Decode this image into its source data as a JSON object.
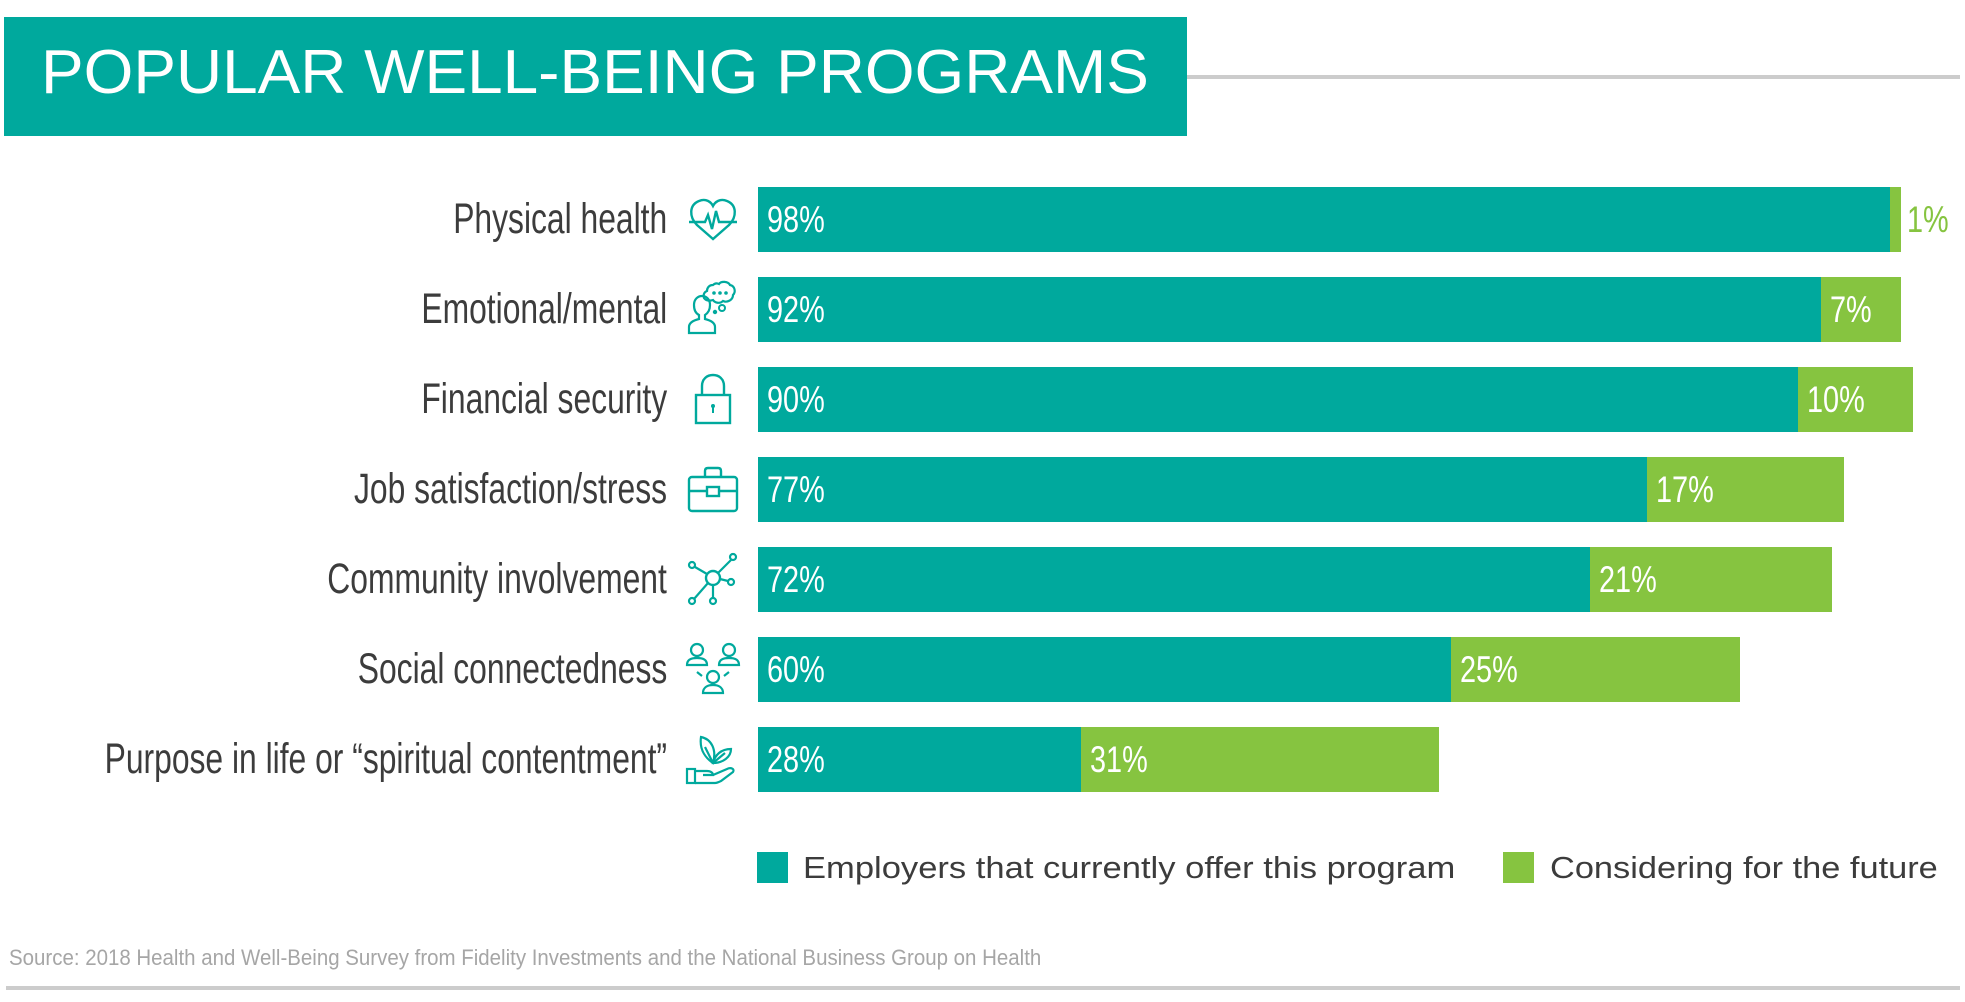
{
  "header": {
    "title": "POPULAR WELL-BEING PROGRAMS"
  },
  "colors": {
    "offer": "#00a99d",
    "consider": "#86c440",
    "title_bg": "#00a99d",
    "label_text": "#3c3c3c",
    "source_text": "#a6a6a6",
    "rule": "#cccccc"
  },
  "chart_data": {
    "type": "bar",
    "orientation": "horizontal",
    "stacked": true,
    "title": "POPULAR WELL-BEING PROGRAMS",
    "xlabel": "",
    "ylabel": "",
    "xlim": [
      0,
      100
    ],
    "grid": false,
    "legend_position": "bottom-right",
    "categories": [
      "Physical health",
      "Emotional/mental",
      "Financial security",
      "Job satisfaction/stress",
      "Community involvement",
      "Social connectedness",
      "Purpose in life or “spiritual contentment”"
    ],
    "category_icons": [
      "heart-pulse-icon",
      "person-thought-bubble-icon",
      "padlock-icon",
      "briefcase-icon",
      "network-nodes-icon",
      "people-group-icon",
      "hand-plant-icon"
    ],
    "series": [
      {
        "name": "Employers that currently offer this program",
        "color": "#00a99d",
        "values": [
          98,
          92,
          90,
          77,
          72,
          60,
          28
        ],
        "labels": [
          "98%",
          "92%",
          "90%",
          "77%",
          "72%",
          "60%",
          "28%"
        ]
      },
      {
        "name": "Considering for the future",
        "color": "#86c440",
        "values": [
          1,
          7,
          10,
          17,
          21,
          25,
          31
        ],
        "labels": [
          "1%",
          "7%",
          "10%",
          "17%",
          "21%",
          "25%",
          "31%"
        ]
      }
    ]
  },
  "legend": {
    "items": [
      {
        "label": "Employers that currently offer this program",
        "color": "#00a99d"
      },
      {
        "label": "Considering for the future",
        "color": "#86c440"
      }
    ]
  },
  "footer": {
    "source": "Source: 2018 Health and Well-Being Survey from Fidelity Investments and the National Business Group on Health"
  }
}
